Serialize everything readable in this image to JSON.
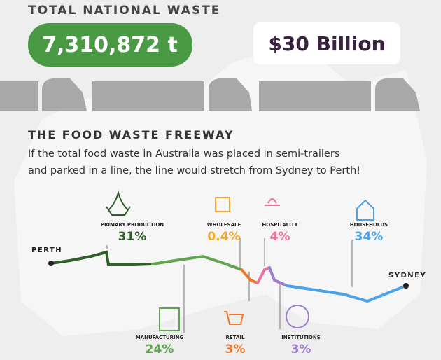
{
  "header": {
    "title": "TOTAL NATIONAL WASTE",
    "tonnes": "7,310,872 t",
    "cost": "$30 Billion"
  },
  "freeway": {
    "title": "THE FOOD WASTE FREEWAY",
    "text": [
      "If the total food waste in Australia was placed in semi-trailers",
      "and parked in a line, the line would stretch from Sydney to Perth!"
    ],
    "start": "PERTH",
    "end": "SYDNEY"
  },
  "sectors": [
    {
      "label": "PRIMARY PRODUCTION",
      "share": "31%"
    },
    {
      "label": "WHOLESALE",
      "share": "0.4%"
    },
    {
      "label": "HOSPITALITY",
      "share": "4%"
    },
    {
      "label": "HOUSEHOLDS",
      "share": "34%"
    },
    {
      "label": "MANUFACTURING",
      "share": "24%"
    },
    {
      "label": "RETAIL",
      "share": "3%"
    },
    {
      "label": "INSTITUTIONS",
      "share": "3%"
    }
  ]
}
